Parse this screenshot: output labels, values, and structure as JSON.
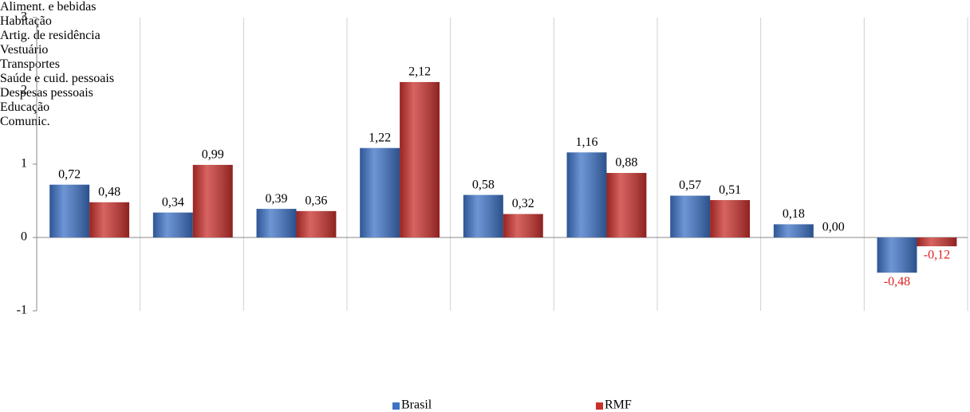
{
  "chart_data": {
    "type": "bar",
    "categories": [
      "Aliment. e bebidas",
      "Habitação",
      "Artig. de residência",
      "Vestuário",
      "Transportes",
      "Saúde e cuid. pessoais",
      "Despesas pessoais",
      "Educação",
      "Comunic."
    ],
    "series": [
      {
        "name": "Brasil",
        "color": "#3d72c6",
        "values": [
          0.72,
          0.34,
          0.39,
          1.22,
          0.58,
          1.16,
          0.57,
          0.18,
          -0.48
        ],
        "value_labels": [
          "0,72",
          "0,34",
          "0,39",
          "1,22",
          "0,58",
          "1,16",
          "0,57",
          "0,18",
          "-0,48"
        ]
      },
      {
        "name": "RMF",
        "color": "#c9302c",
        "values": [
          0.48,
          0.99,
          0.36,
          2.12,
          0.32,
          0.88,
          0.51,
          0.0,
          -0.12
        ],
        "value_labels": [
          "0,48",
          "0,99",
          "0,36",
          "2,12",
          "0,32",
          "0,88",
          "0,51",
          "0,00",
          "-0,12"
        ]
      }
    ],
    "ylim": [
      -1,
      3
    ],
    "yticks": [
      -1,
      0,
      1,
      2,
      3
    ],
    "legend": "bottom"
  }
}
